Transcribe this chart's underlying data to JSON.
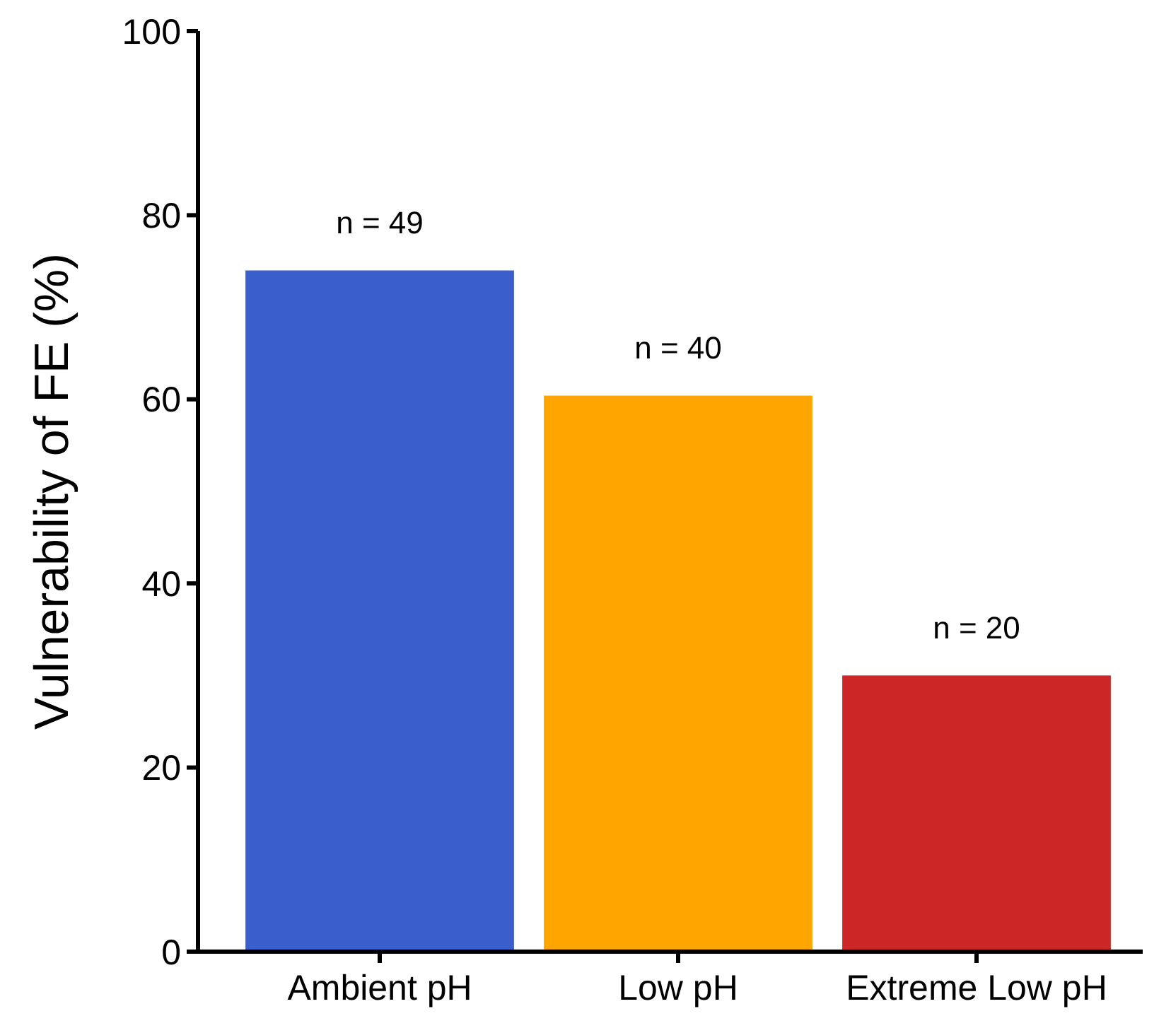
{
  "chart_data": {
    "type": "bar",
    "ylabel": "Vulnerability of FE (%)",
    "categories": [
      "Ambient pH",
      "Low pH",
      "Extreme Low pH"
    ],
    "values": [
      74,
      60.4,
      30
    ],
    "colors": [
      "#3a5fcd",
      "#ffa500",
      "#cd2626"
    ],
    "ylim": [
      0,
      100
    ],
    "yticks": [
      0,
      20,
      40,
      60,
      80,
      100
    ],
    "annotations": [
      "n = 49",
      "n = 40",
      "n = 20"
    ]
  }
}
